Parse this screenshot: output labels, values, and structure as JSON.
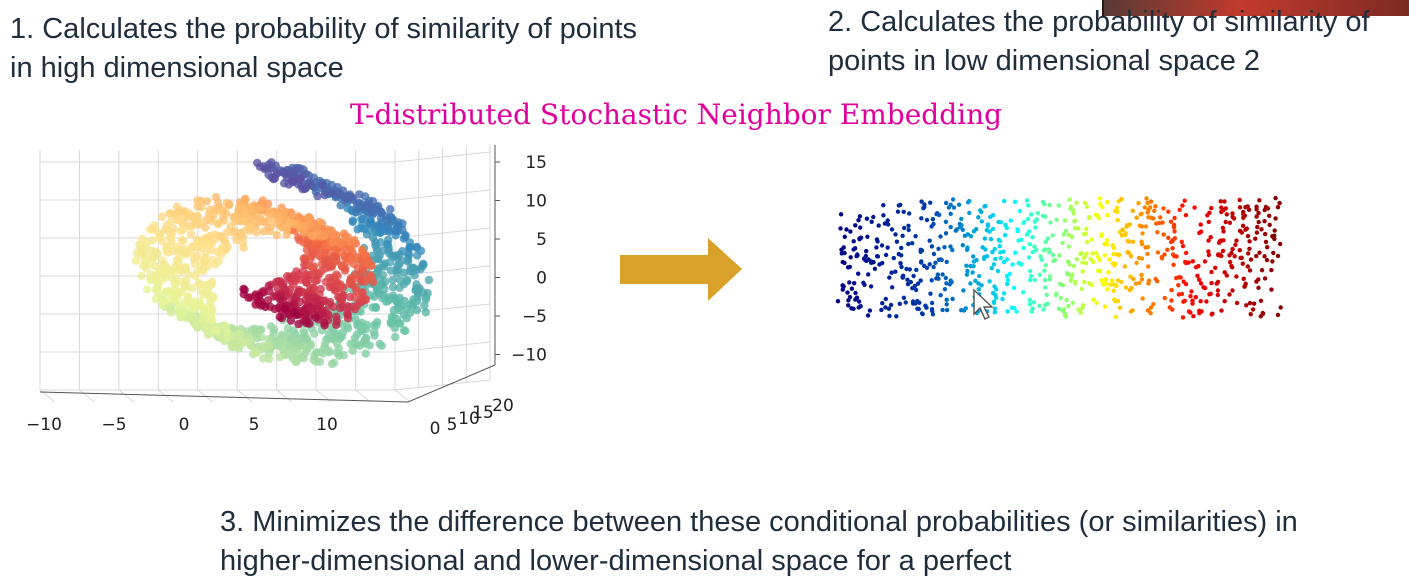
{
  "slide": {
    "step1": "1. Calculates the probability of similarity of points in high dimensional space",
    "step2": "2. Calculates the probability of similarity of points in low dimensional space 2",
    "title": "T-distributed Stochastic Neighbor Embedding",
    "step3": "3. Minimizes the difference between these conditional probabilities (or similarities) in higher-dimensional and lower-dimensional space for a perfect"
  },
  "colors": {
    "title": "#e0009e",
    "arrow": "#d9a12a",
    "text": "#1f2d3d"
  },
  "chart_data": [
    {
      "type": "scatter",
      "projection": "3d",
      "xlim": [
        -12,
        13
      ],
      "ylim": [
        0,
        21
      ],
      "zlim": [
        -12,
        16
      ],
      "x_ticks": [
        "−10",
        "−5",
        "0",
        "5",
        "10"
      ],
      "y_ticks": [
        "0",
        "5",
        "10",
        "15",
        "20"
      ],
      "z_ticks": [
        "15",
        "10",
        "5",
        "0",
        "−5",
        "−10"
      ],
      "colormap": "Spectral",
      "grid": true
    },
    {
      "type": "scatter",
      "projection": "2d",
      "colormap": "jet",
      "axes": false
    }
  ]
}
